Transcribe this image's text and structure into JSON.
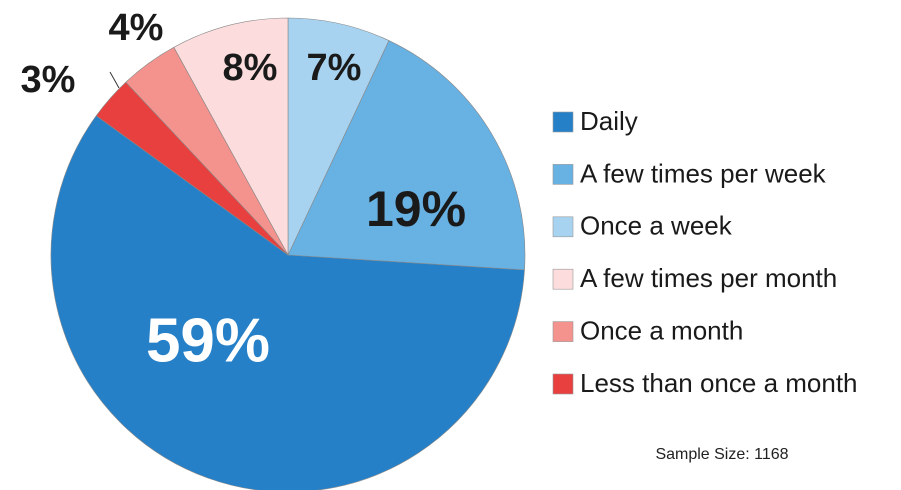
{
  "chart_data": {
    "type": "pie",
    "categories": [
      "Daily",
      "A few times per week",
      "Once a week",
      "A few times per month",
      "Once a month",
      "Less than once a month"
    ],
    "values": [
      59,
      19,
      7,
      8,
      4,
      3
    ],
    "value_labels": [
      "59%",
      "19%",
      "7%",
      "8%",
      "4%",
      "3%"
    ],
    "colors": [
      "#2580c8",
      "#68b1e3",
      "#a8d3f0",
      "#fcdcdc",
      "#f4928d",
      "#e8403e"
    ],
    "note": "Sample Size: 1168"
  }
}
